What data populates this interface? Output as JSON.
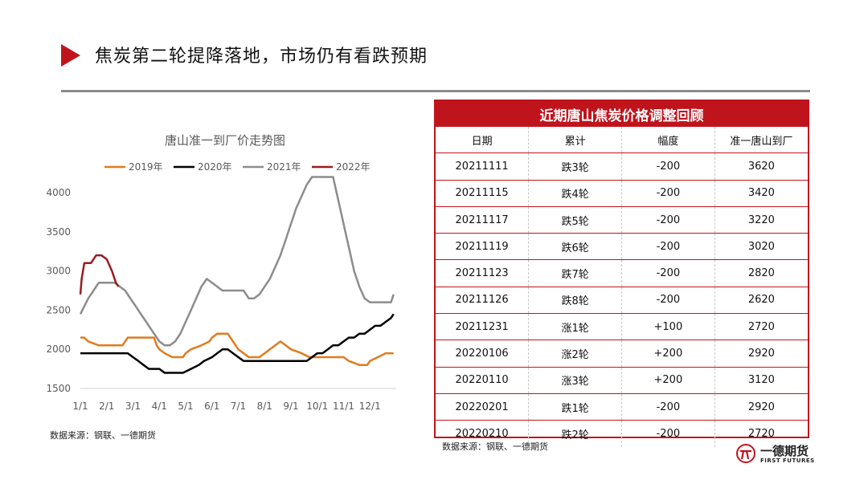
{
  "page": {
    "title": "焦炭第二轮提降落地，市场仍有看跌预期",
    "source_left": "数据来源：钢联、一德期货",
    "source_right": "数据来源：钢联、一德期货"
  },
  "colors": {
    "accent": "#c0141c",
    "s2019": "#e07b1e",
    "s2020": "#000000",
    "s2021": "#8c8c8c",
    "s2022": "#9b1c20"
  },
  "chart_data": {
    "type": "line",
    "title": "唐山准一到厂价走势图",
    "xlabel": "",
    "ylabel": "",
    "ylim": [
      1500,
      4000
    ],
    "yticks": [
      1500,
      2000,
      2500,
      3000,
      3500,
      4000
    ],
    "xticks": [
      "1/1",
      "2/1",
      "3/1",
      "4/1",
      "5/1",
      "6/1",
      "7/1",
      "8/1",
      "9/1",
      "10/1",
      "11/1",
      "12/1"
    ],
    "grid": false,
    "legend": "top",
    "series": [
      {
        "name": "2019年",
        "color": "#e07b1e",
        "x": [
          0,
          0.15,
          0.3,
          0.7,
          1.0,
          1.3,
          1.5,
          1.6,
          1.7,
          1.8,
          2.0,
          2.2,
          2.5,
          2.8,
          2.9,
          3.0,
          3.2,
          3.5,
          3.7,
          3.9,
          4.0,
          4.2,
          4.6,
          4.9,
          5.0,
          5.2,
          5.4,
          5.6,
          5.7,
          5.8,
          5.9,
          6.0,
          6.2,
          6.4,
          6.8,
          7.0,
          7.2,
          7.4,
          7.6,
          7.8,
          8.0,
          8.4,
          8.7,
          9.0,
          9.4,
          10.0,
          10.2,
          10.6,
          10.9,
          11.0,
          11.3,
          11.6,
          11.9
        ],
        "y": [
          2150,
          2150,
          2100,
          2050,
          2050,
          2050,
          2050,
          2050,
          2100,
          2150,
          2150,
          2150,
          2150,
          2150,
          2050,
          2000,
          1950,
          1900,
          1900,
          1900,
          1950,
          2000,
          2050,
          2100,
          2150,
          2200,
          2200,
          2200,
          2150,
          2100,
          2050,
          2000,
          1950,
          1900,
          1900,
          1950,
          2000,
          2050,
          2100,
          2050,
          2000,
          1950,
          1900,
          1900,
          1900,
          1900,
          1850,
          1800,
          1800,
          1850,
          1900,
          1950,
          1950
        ]
      },
      {
        "name": "2020年",
        "color": "#000000",
        "x": [
          0,
          0.3,
          0.6,
          1.0,
          1.4,
          1.8,
          2.0,
          2.2,
          2.4,
          2.6,
          2.8,
          3.0,
          3.2,
          3.5,
          3.7,
          3.9,
          4.2,
          4.5,
          4.7,
          5.0,
          5.2,
          5.4,
          5.6,
          5.8,
          6.0,
          6.2,
          6.4,
          6.6,
          6.8,
          7.0,
          7.2,
          7.4,
          7.6,
          7.8,
          8.0,
          8.2,
          8.4,
          8.6,
          8.8,
          9.0,
          9.2,
          9.4,
          9.6,
          9.8,
          10.0,
          10.2,
          10.4,
          10.6,
          10.8,
          11.0,
          11.2,
          11.4,
          11.6,
          11.8,
          11.9
        ],
        "y": [
          1950,
          1950,
          1950,
          1950,
          1950,
          1950,
          1900,
          1850,
          1800,
          1750,
          1750,
          1750,
          1700,
          1700,
          1700,
          1700,
          1750,
          1800,
          1850,
          1900,
          1950,
          2000,
          2000,
          1950,
          1900,
          1850,
          1850,
          1850,
          1850,
          1850,
          1850,
          1850,
          1850,
          1850,
          1850,
          1850,
          1850,
          1850,
          1900,
          1950,
          1950,
          2000,
          2050,
          2050,
          2100,
          2150,
          2150,
          2200,
          2200,
          2250,
          2300,
          2300,
          2350,
          2400,
          2450
        ]
      },
      {
        "name": "2021年",
        "color": "#8c8c8c",
        "x": [
          0,
          0.15,
          0.3,
          0.5,
          0.7,
          0.9,
          1.1,
          1.3,
          1.5,
          1.7,
          1.9,
          2.1,
          2.3,
          2.5,
          2.7,
          2.9,
          3.0,
          3.2,
          3.4,
          3.6,
          3.8,
          4.0,
          4.2,
          4.4,
          4.6,
          4.8,
          5.0,
          5.2,
          5.4,
          5.6,
          5.8,
          6.0,
          6.2,
          6.4,
          6.6,
          6.8,
          7.0,
          7.2,
          7.4,
          7.6,
          7.8,
          8.0,
          8.2,
          8.4,
          8.6,
          8.8,
          9.0,
          9.2,
          9.4,
          9.6,
          9.8,
          10.0,
          10.2,
          10.4,
          10.6,
          10.8,
          11.0,
          11.2,
          11.4,
          11.6,
          11.8,
          11.9
        ],
        "y": [
          2450,
          2550,
          2650,
          2750,
          2850,
          2850,
          2850,
          2850,
          2800,
          2750,
          2650,
          2550,
          2450,
          2350,
          2250,
          2150,
          2100,
          2050,
          2050,
          2100,
          2200,
          2350,
          2500,
          2650,
          2800,
          2900,
          2850,
          2800,
          2750,
          2750,
          2750,
          2750,
          2750,
          2650,
          2650,
          2700,
          2800,
          2900,
          3050,
          3200,
          3400,
          3600,
          3800,
          3950,
          4100,
          4200,
          4200,
          4200,
          4200,
          4200,
          3900,
          3600,
          3300,
          3000,
          2800,
          2650,
          2600,
          2600,
          2600,
          2600,
          2600,
          2700
        ]
      },
      {
        "name": "2022年",
        "color": "#9b1c20",
        "x": [
          0,
          0.05,
          0.15,
          0.25,
          0.4,
          0.6,
          0.8,
          1.0,
          1.2,
          1.35,
          1.45
        ],
        "y": [
          2700,
          2900,
          3100,
          3100,
          3100,
          3200,
          3200,
          3150,
          3000,
          2850,
          2800
        ]
      }
    ]
  },
  "table": {
    "title": "近期唐山焦炭价格调整回顾",
    "headers": [
      "日期",
      "累计",
      "幅度",
      "准一唐山到厂"
    ],
    "rows": [
      [
        "20211111",
        "跌3轮",
        "-200",
        "3620"
      ],
      [
        "20211115",
        "跌4轮",
        "-200",
        "3420"
      ],
      [
        "20211117",
        "跌5轮",
        "-200",
        "3220"
      ],
      [
        "20211119",
        "跌6轮",
        "-200",
        "3020"
      ],
      [
        "20211123",
        "跌7轮",
        "-200",
        "2820"
      ],
      [
        "20211126",
        "跌8轮",
        "-200",
        "2620"
      ],
      [
        "20211231",
        "涨1轮",
        "+100",
        "2720"
      ],
      [
        "20220106",
        "涨2轮",
        "+200",
        "2920"
      ],
      [
        "20220110",
        "涨3轮",
        "+200",
        "3120"
      ],
      [
        "20220201",
        "跌1轮",
        "-200",
        "2920"
      ],
      [
        "20220210",
        "跌2轮",
        "-200",
        "2720"
      ]
    ]
  },
  "logo": {
    "name": "一德期货",
    "sub": "FIRST FUTURES"
  }
}
